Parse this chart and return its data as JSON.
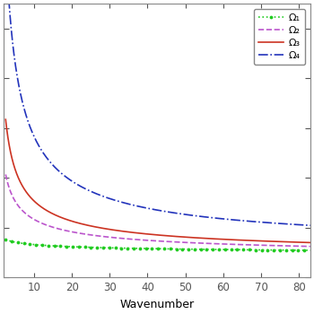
{
  "xlabel": "Wavenumber",
  "xlim": [
    2,
    83
  ],
  "ylim": [
    0.0,
    5.5
  ],
  "x_ticks": [
    10,
    20,
    30,
    40,
    50,
    60,
    70,
    80
  ],
  "legend_labels": [
    "Ω₁",
    "Ω₂",
    "Ω₃",
    "Ω₄"
  ],
  "legend_styles": [
    {
      "color": "#22cc22",
      "linestyle": ":",
      "marker": ".",
      "markersize": 3.5,
      "linewidth": 1.2
    },
    {
      "color": "#bb55cc",
      "linestyle": "--",
      "linewidth": 1.2
    },
    {
      "color": "#cc3322",
      "linestyle": "-",
      "linewidth": 1.2
    },
    {
      "color": "#2233bb",
      "linestyle": "-.",
      "linewidth": 1.2
    }
  ],
  "curve_params": [
    [
      0.55,
      0.18,
      0.3
    ],
    [
      2.8,
      0.55,
      0.38
    ],
    [
      5.0,
      0.65,
      0.42
    ],
    [
      12.0,
      0.72,
      0.55
    ]
  ],
  "background_color": "#ffffff"
}
